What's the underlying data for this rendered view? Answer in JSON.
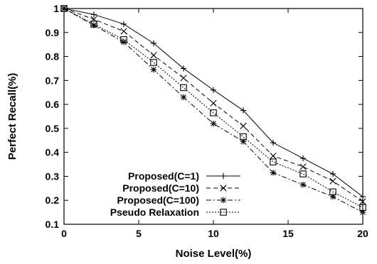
{
  "chart_data": {
    "type": "line",
    "xlabel": "Noise Level(%)",
    "ylabel": "Perfect Recall(%)",
    "xlim": [
      0,
      20
    ],
    "ylim": [
      0.1,
      1.0
    ],
    "xticks": [
      0,
      5,
      10,
      15,
      20
    ],
    "yticks": [
      0.1,
      0.2,
      0.3,
      0.4,
      0.5,
      0.6,
      0.7,
      0.8,
      0.9,
      1
    ],
    "x": [
      0,
      2,
      4,
      6,
      8,
      10,
      12,
      14,
      16,
      18,
      20
    ],
    "grid": false,
    "legend_position": "bottom-left",
    "series": [
      {
        "name": "Proposed(C=1)",
        "marker": "plus",
        "dash": "solid",
        "values": [
          1.0,
          0.975,
          0.935,
          0.855,
          0.75,
          0.66,
          0.575,
          0.44,
          0.375,
          0.31,
          0.215
        ]
      },
      {
        "name": "Proposed(C=10)",
        "marker": "cross",
        "dash": "dashed",
        "values": [
          1.0,
          0.955,
          0.905,
          0.805,
          0.71,
          0.605,
          0.51,
          0.385,
          0.34,
          0.28,
          0.195
        ]
      },
      {
        "name": "Proposed(C=100)",
        "marker": "star",
        "dash": "dashdot",
        "values": [
          1.0,
          0.93,
          0.86,
          0.745,
          0.63,
          0.52,
          0.445,
          0.315,
          0.265,
          0.215,
          0.15
        ]
      },
      {
        "name": "Pseudo Relaxation",
        "marker": "square",
        "dash": "dotted",
        "values": [
          1.0,
          0.935,
          0.87,
          0.775,
          0.67,
          0.565,
          0.465,
          0.36,
          0.31,
          0.235,
          0.17
        ]
      }
    ]
  }
}
